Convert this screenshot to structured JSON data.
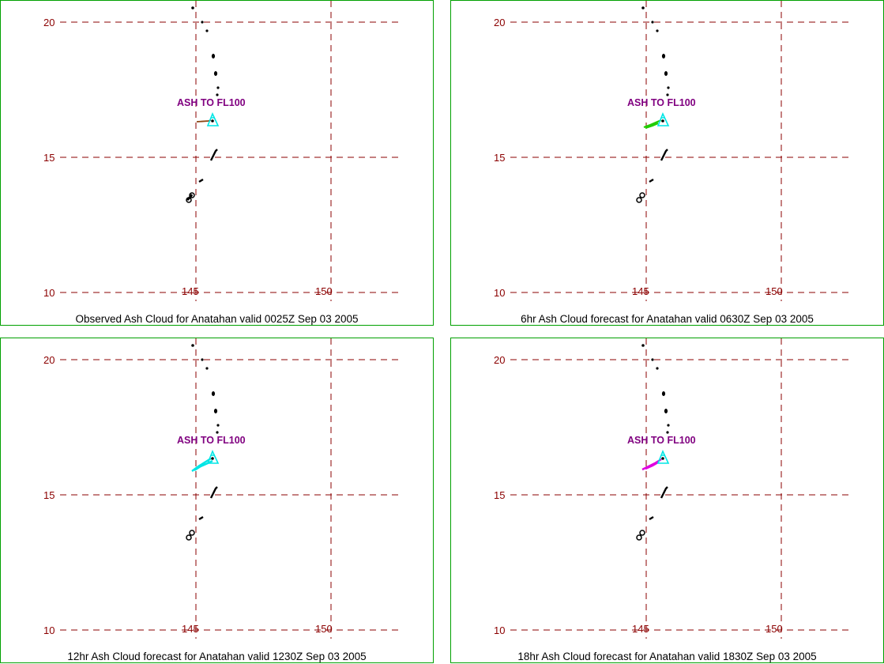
{
  "colors": {
    "panel_border": "#00a000",
    "grid": "#8b0000",
    "tick_text": "#8b0000",
    "island": "#000000",
    "ash_label": "#800080",
    "volcano_marker": "#00e5e5"
  },
  "panels": [
    {
      "caption": "Observed Ash Cloud for Anatahan valid 0025Z Sep 03 2005",
      "ash_label": "ASH TO FL100",
      "ash_color": "#8b4513",
      "lat_ticks": [
        "20",
        "15",
        "10"
      ],
      "lon_ticks": [
        "145",
        "150"
      ]
    },
    {
      "caption": "6hr Ash Cloud forecast for Anatahan valid 0630Z Sep 03 2005",
      "ash_label": "ASH TO FL100",
      "ash_color": "#22cc00",
      "lat_ticks": [
        "20",
        "15",
        "10"
      ],
      "lon_ticks": [
        "145",
        "150"
      ]
    },
    {
      "caption": "12hr Ash Cloud forecast for Anatahan valid 1230Z Sep 03 2005",
      "ash_label": "ASH TO FL100",
      "ash_color": "#00e5e5",
      "lat_ticks": [
        "20",
        "15",
        "10"
      ],
      "lon_ticks": [
        "145",
        "150"
      ]
    },
    {
      "caption": "18hr Ash Cloud forecast for Anatahan valid 1830Z Sep 03 2005",
      "ash_label": "ASH TO FL100",
      "ash_color": "#e000e0",
      "lat_ticks": [
        "20",
        "15",
        "10"
      ],
      "lon_ticks": [
        "145",
        "150"
      ]
    }
  ]
}
